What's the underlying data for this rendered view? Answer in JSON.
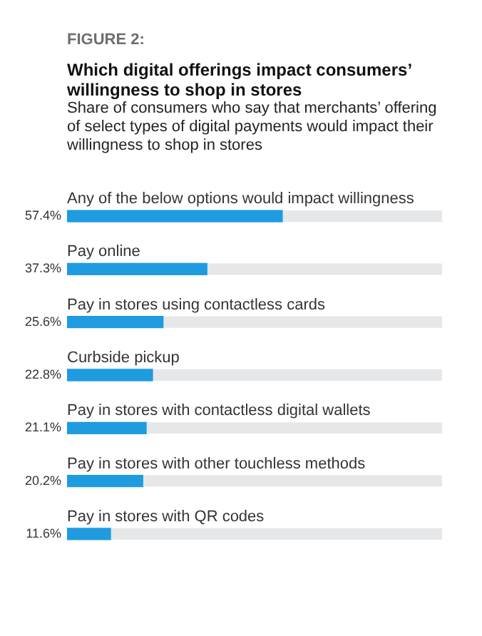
{
  "chart_data": {
    "type": "bar",
    "orientation": "horizontal",
    "title": "FIGURE 2:",
    "subtitle": "Which digital offerings impact consumers’ willingness to shop in stores",
    "annotations": [
      "Share of consumers who say that merchants’ offering of select types of digital payments would impact their willingness to shop in stores"
    ],
    "categories": [
      "Any of the below options would impact willingness",
      "Pay online",
      "Pay in stores using contactless cards",
      "Curbside pickup",
      "Pay in stores with contactless digital wallets",
      "Pay in stores with other touchless methods",
      "Pay in stores with QR codes"
    ],
    "values": [
      57.4,
      37.3,
      25.6,
      22.8,
      21.1,
      20.2,
      11.6
    ],
    "value_labels": [
      "57.4%",
      "37.3%",
      "25.6%",
      "22.8%",
      "21.1%",
      "20.2%",
      "11.6%"
    ],
    "color": "#1f9be0",
    "xlim": [
      0,
      100
    ]
  }
}
